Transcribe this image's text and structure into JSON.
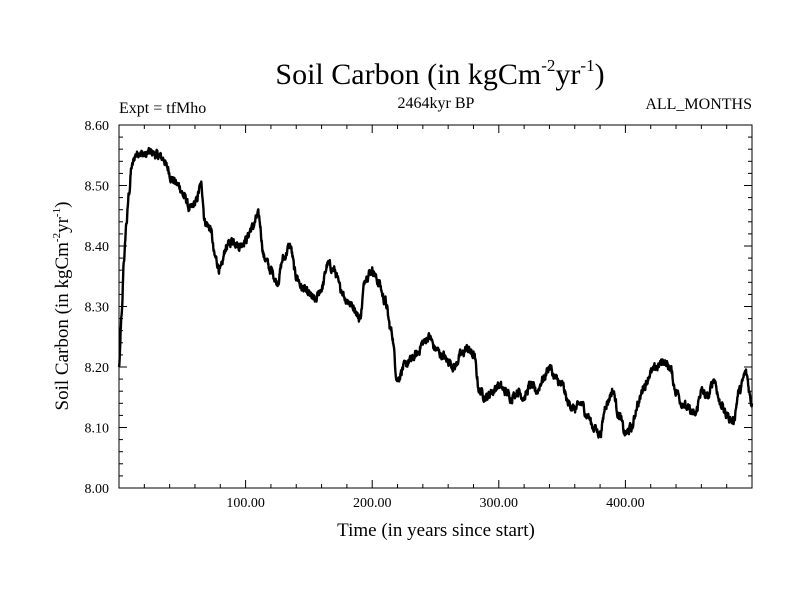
{
  "chart_data": {
    "type": "line",
    "title": {
      "main": "Soil Carbon (in kgCm",
      "sup1": "-2",
      "mid": "yr",
      "sup2": "-1",
      "end": ")"
    },
    "subtitle_left": "Expt = tfMho",
    "subtitle_center": "2464kyr BP",
    "subtitle_right": "ALL_MONTHS",
    "xlabel": "Time (in years since start)",
    "ylabel": {
      "main": "Soil Carbon (in kgCm",
      "sup1": "-2",
      "mid": "yr",
      "sup2": "-1",
      "end": ")"
    },
    "xlim": [
      0,
      500
    ],
    "ylim": [
      8.0,
      8.6
    ],
    "x_ticks": [
      {
        "value": 100,
        "label": "100.00"
      },
      {
        "value": 200,
        "label": "200.00"
      },
      {
        "value": 300,
        "label": "300.00"
      },
      {
        "value": 400,
        "label": "400.00"
      }
    ],
    "y_ticks": [
      {
        "value": 8.0,
        "label": "8.00"
      },
      {
        "value": 8.1,
        "label": "8.10"
      },
      {
        "value": 8.2,
        "label": "8.20"
      },
      {
        "value": 8.3,
        "label": "8.30"
      },
      {
        "value": 8.4,
        "label": "8.40"
      },
      {
        "value": 8.5,
        "label": "8.50"
      },
      {
        "value": 8.6,
        "label": "8.60"
      }
    ],
    "line_color": "#000000",
    "series": [
      {
        "name": "Soil Carbon",
        "x": [
          0,
          2,
          4,
          6,
          8,
          10,
          13,
          16,
          20,
          25,
          30,
          35,
          38,
          42,
          47,
          52,
          56,
          60,
          65,
          68,
          72,
          76,
          80,
          85,
          90,
          95,
          100,
          105,
          110,
          115,
          120,
          125,
          130,
          135,
          140,
          145,
          150,
          155,
          160,
          165,
          170,
          175,
          180,
          185,
          190,
          195,
          200,
          205,
          210,
          215,
          220,
          225,
          230,
          235,
          240,
          245,
          250,
          255,
          260,
          265,
          270,
          275,
          280,
          285,
          290,
          295,
          300,
          305,
          310,
          315,
          320,
          325,
          330,
          335,
          340,
          345,
          350,
          355,
          360,
          365,
          370,
          375,
          380,
          385,
          390,
          395,
          400,
          405,
          410,
          415,
          420,
          425,
          430,
          435,
          440,
          445,
          450,
          455,
          460,
          465,
          470,
          475,
          480,
          485,
          490,
          495,
          500
        ],
        "values": [
          8.2,
          8.28,
          8.38,
          8.44,
          8.49,
          8.53,
          8.55,
          8.555,
          8.55,
          8.555,
          8.55,
          8.545,
          8.53,
          8.51,
          8.5,
          8.48,
          8.46,
          8.47,
          8.5,
          8.44,
          8.43,
          8.38,
          8.36,
          8.4,
          8.41,
          8.4,
          8.41,
          8.43,
          8.45,
          8.38,
          8.36,
          8.34,
          8.38,
          8.4,
          8.35,
          8.33,
          8.32,
          8.31,
          8.33,
          8.37,
          8.36,
          8.33,
          8.31,
          8.3,
          8.28,
          8.35,
          8.36,
          8.34,
          8.31,
          8.26,
          8.18,
          8.2,
          8.21,
          8.22,
          8.24,
          8.25,
          8.23,
          8.22,
          8.21,
          8.2,
          8.22,
          8.23,
          8.22,
          8.16,
          8.15,
          8.16,
          8.17,
          8.16,
          8.15,
          8.16,
          8.15,
          8.17,
          8.16,
          8.18,
          8.2,
          8.18,
          8.17,
          8.14,
          8.13,
          8.14,
          8.12,
          8.1,
          8.09,
          8.14,
          8.16,
          8.12,
          8.09,
          8.1,
          8.14,
          8.17,
          8.19,
          8.2,
          8.21,
          8.2,
          8.16,
          8.14,
          8.13,
          8.12,
          8.16,
          8.15,
          8.18,
          8.14,
          8.12,
          8.11,
          8.16,
          8.19,
          8.14
        ]
      }
    ]
  }
}
